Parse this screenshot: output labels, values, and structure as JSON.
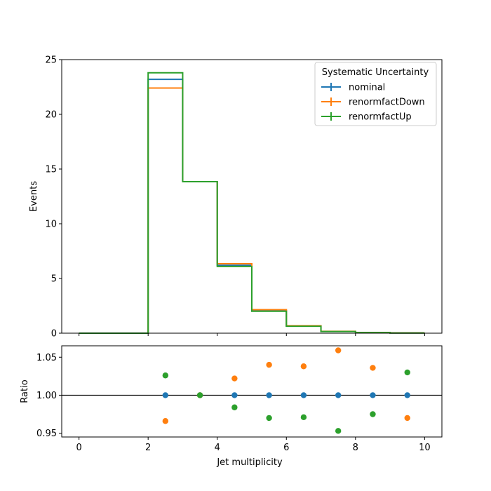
{
  "chart_data": [
    {
      "type": "step",
      "ylabel": "Events",
      "xlim": [
        -0.5,
        10.5
      ],
      "ylim": [
        0,
        25
      ],
      "yticks": [
        0,
        5,
        10,
        15,
        20,
        25
      ],
      "bin_edges": [
        0,
        1,
        2,
        3,
        4,
        5,
        6,
        7,
        8,
        9,
        10
      ],
      "series": [
        {
          "name": "nominal",
          "color": "#1f77b4",
          "values": [
            0,
            0,
            23.2,
            13.85,
            6.2,
            2.05,
            0.65,
            0.16,
            0.06,
            0.02
          ]
        },
        {
          "name": "renormfactDown",
          "color": "#ff7f0e",
          "values": [
            0,
            0,
            22.4,
            13.85,
            6.35,
            2.15,
            0.68,
            0.17,
            0.065,
            0.021
          ]
        },
        {
          "name": "renormfactUp",
          "color": "#2ca02c",
          "values": [
            0,
            0,
            23.8,
            13.85,
            6.1,
            2.0,
            0.63,
            0.15,
            0.058,
            0.019
          ]
        }
      ],
      "legend": {
        "title": "Systematic Uncertainty",
        "placement": "upper right"
      }
    },
    {
      "type": "scatter",
      "xlabel": "Jet multiplicity",
      "ylabel": "Ratio",
      "xlim": [
        -0.5,
        10.5
      ],
      "ylim": [
        0.945,
        1.065
      ],
      "xticks": [
        0,
        2,
        4,
        6,
        8,
        10
      ],
      "yticks": [
        0.95,
        1.0,
        1.05
      ],
      "ytick_labels": [
        "0.95",
        "1.00",
        "1.05"
      ],
      "reference_line": 1.0,
      "x": [
        2.5,
        3.5,
        4.5,
        5.5,
        6.5,
        7.5,
        8.5,
        9.5
      ],
      "series": [
        {
          "name": "nominal",
          "color": "#1f77b4",
          "values": [
            1.0,
            1.0,
            1.0,
            1.0,
            1.0,
            1.0,
            1.0,
            1.0
          ]
        },
        {
          "name": "renormfactDown",
          "color": "#ff7f0e",
          "values": [
            0.966,
            1.0,
            1.022,
            1.04,
            1.038,
            1.059,
            1.036,
            0.97
          ]
        },
        {
          "name": "renormfactUp",
          "color": "#2ca02c",
          "values": [
            1.026,
            1.0,
            0.984,
            0.97,
            0.971,
            0.953,
            0.975,
            1.03
          ]
        }
      ]
    }
  ]
}
